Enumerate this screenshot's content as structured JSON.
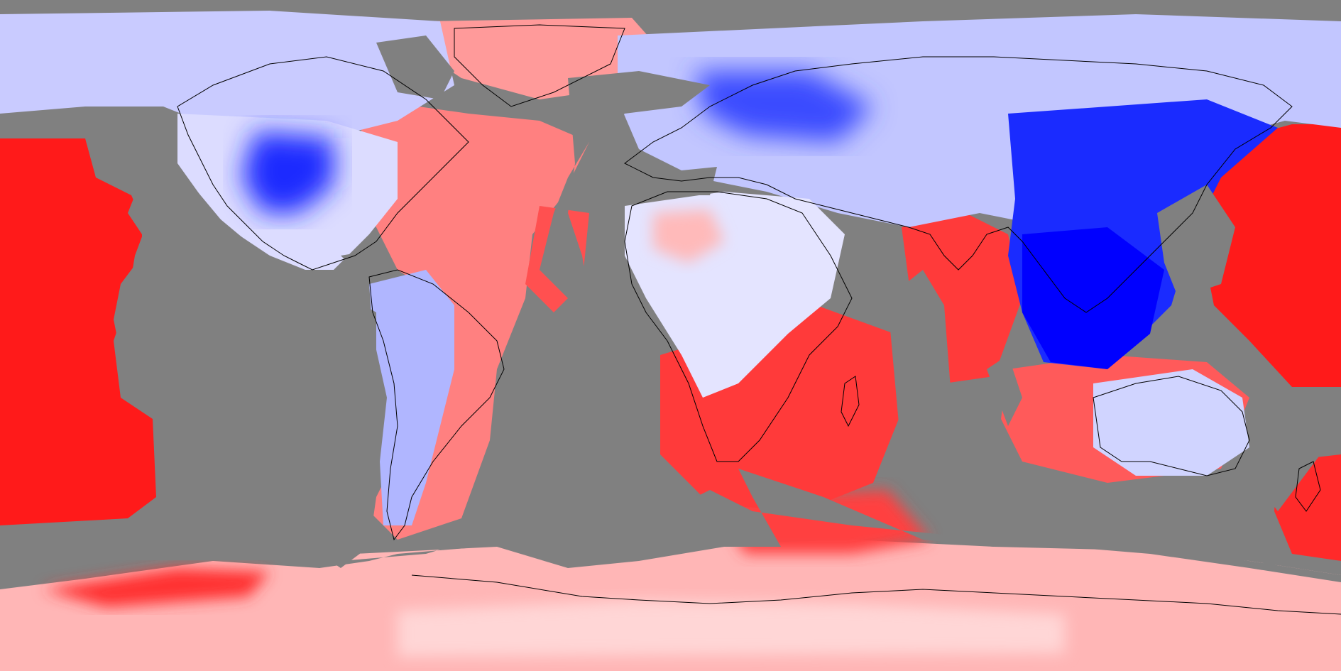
{
  "map": {
    "projection": "equirectangular",
    "colors": {
      "no_data": "#808080",
      "strong_negative": "#0000ff",
      "weak_negative": "#c8ccff",
      "neutral": "#ffffff",
      "weak_positive": "#ffb0b0",
      "strong_positive": "#ff0000",
      "coastline": "#000000"
    },
    "layers": [
      "anomaly-field",
      "no-data-mask",
      "coastlines"
    ]
  }
}
